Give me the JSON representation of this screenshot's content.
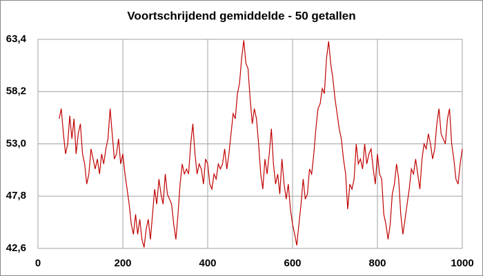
{
  "chart_data": {
    "type": "line",
    "title": "Voortschrijdend gemiddelde - 50 getallen",
    "x": [
      50,
      55,
      60,
      65,
      70,
      75,
      80,
      85,
      90,
      95,
      100,
      105,
      110,
      115,
      120,
      125,
      130,
      135,
      140,
      145,
      150,
      155,
      160,
      165,
      170,
      175,
      180,
      185,
      190,
      195,
      200,
      205,
      210,
      215,
      220,
      225,
      230,
      235,
      240,
      245,
      250,
      255,
      260,
      265,
      270,
      275,
      280,
      285,
      290,
      295,
      300,
      305,
      310,
      315,
      320,
      325,
      330,
      335,
      340,
      345,
      350,
      355,
      360,
      365,
      370,
      375,
      380,
      385,
      390,
      395,
      400,
      405,
      410,
      415,
      420,
      425,
      430,
      435,
      440,
      445,
      450,
      455,
      460,
      465,
      470,
      475,
      480,
      485,
      490,
      495,
      500,
      505,
      510,
      515,
      520,
      525,
      530,
      535,
      540,
      545,
      550,
      555,
      560,
      565,
      570,
      575,
      580,
      585,
      590,
      595,
      600,
      605,
      610,
      615,
      620,
      625,
      630,
      635,
      640,
      645,
      650,
      655,
      660,
      665,
      670,
      675,
      680,
      685,
      690,
      695,
      700,
      705,
      710,
      715,
      720,
      725,
      730,
      735,
      740,
      745,
      750,
      755,
      760,
      765,
      770,
      775,
      780,
      785,
      790,
      795,
      800,
      805,
      810,
      815,
      820,
      825,
      830,
      835,
      840,
      845,
      850,
      855,
      860,
      865,
      870,
      875,
      880,
      885,
      890,
      895,
      900,
      905,
      910,
      915,
      920,
      925,
      930,
      935,
      940,
      945,
      950,
      955,
      960,
      965,
      970,
      975,
      980,
      985,
      990,
      995,
      1000
    ],
    "series": [
      {
        "name": "Voortschrijdend gemiddelde",
        "color": "#c00000",
        "values": [
          55.5,
          56.5,
          54,
          52,
          53,
          55.8,
          53.5,
          55.5,
          52,
          54,
          55,
          52,
          51,
          49,
          50,
          52.5,
          51.5,
          50.5,
          51.5,
          50,
          52,
          51,
          52.5,
          53.5,
          56.5,
          54,
          51.5,
          52,
          53.5,
          51,
          52,
          50,
          48.5,
          47,
          45,
          44,
          46,
          44,
          45.5,
          43.5,
          42.7,
          44.5,
          45.5,
          43.5,
          46,
          48.5,
          47,
          49.5,
          48,
          47,
          50,
          48,
          47.5,
          47,
          45,
          43.5,
          46,
          49,
          51,
          50,
          50.5,
          50,
          53,
          55,
          52,
          50,
          51,
          50.5,
          49,
          51.5,
          51,
          49,
          48.5,
          50,
          49.5,
          51,
          50.5,
          51,
          52.5,
          50.5,
          52,
          54,
          56,
          55.5,
          58,
          59,
          61.5,
          63.3,
          61,
          60.5,
          57.5,
          55,
          56.5,
          55.5,
          53,
          50,
          48.5,
          51.5,
          50,
          52,
          54.5,
          51,
          49,
          50,
          48,
          51.5,
          49,
          47.5,
          49,
          46.5,
          45,
          44,
          42.9,
          45,
          47,
          49.5,
          47.5,
          48,
          50.5,
          50,
          52,
          54.5,
          56.5,
          57,
          58.5,
          58,
          61.5,
          63.2,
          61,
          59.5,
          57.5,
          56,
          54.5,
          53.5,
          51.5,
          50,
          46.5,
          49,
          48.5,
          49.5,
          53,
          51,
          51.5,
          50.5,
          53,
          51,
          52,
          52.5,
          50.5,
          49,
          52,
          50,
          49.5,
          46,
          45,
          43.5,
          45,
          48,
          49,
          51,
          49.5,
          46,
          44,
          45.5,
          47,
          48.5,
          50.5,
          50,
          51.5,
          50,
          48.5,
          51.5,
          53,
          52.5,
          54,
          53,
          51.5,
          52.5,
          55,
          56.5,
          54,
          53.5,
          53,
          55.5,
          56.5,
          53,
          51.5,
          49.5,
          49,
          51,
          52.5
        ]
      }
    ],
    "xlim": [
      0,
      1000
    ],
    "xticks": [
      0,
      200,
      400,
      600,
      800,
      1000
    ],
    "ylim": [
      42.6,
      63.4
    ],
    "yticks": [
      {
        "value": 42.6,
        "label": "42,6"
      },
      {
        "value": 47.8,
        "label": "47,8"
      },
      {
        "value": 53.0,
        "label": "53,0"
      },
      {
        "value": 58.2,
        "label": "58,2"
      },
      {
        "value": 63.4,
        "label": "63,4"
      }
    ],
    "grid": true
  }
}
